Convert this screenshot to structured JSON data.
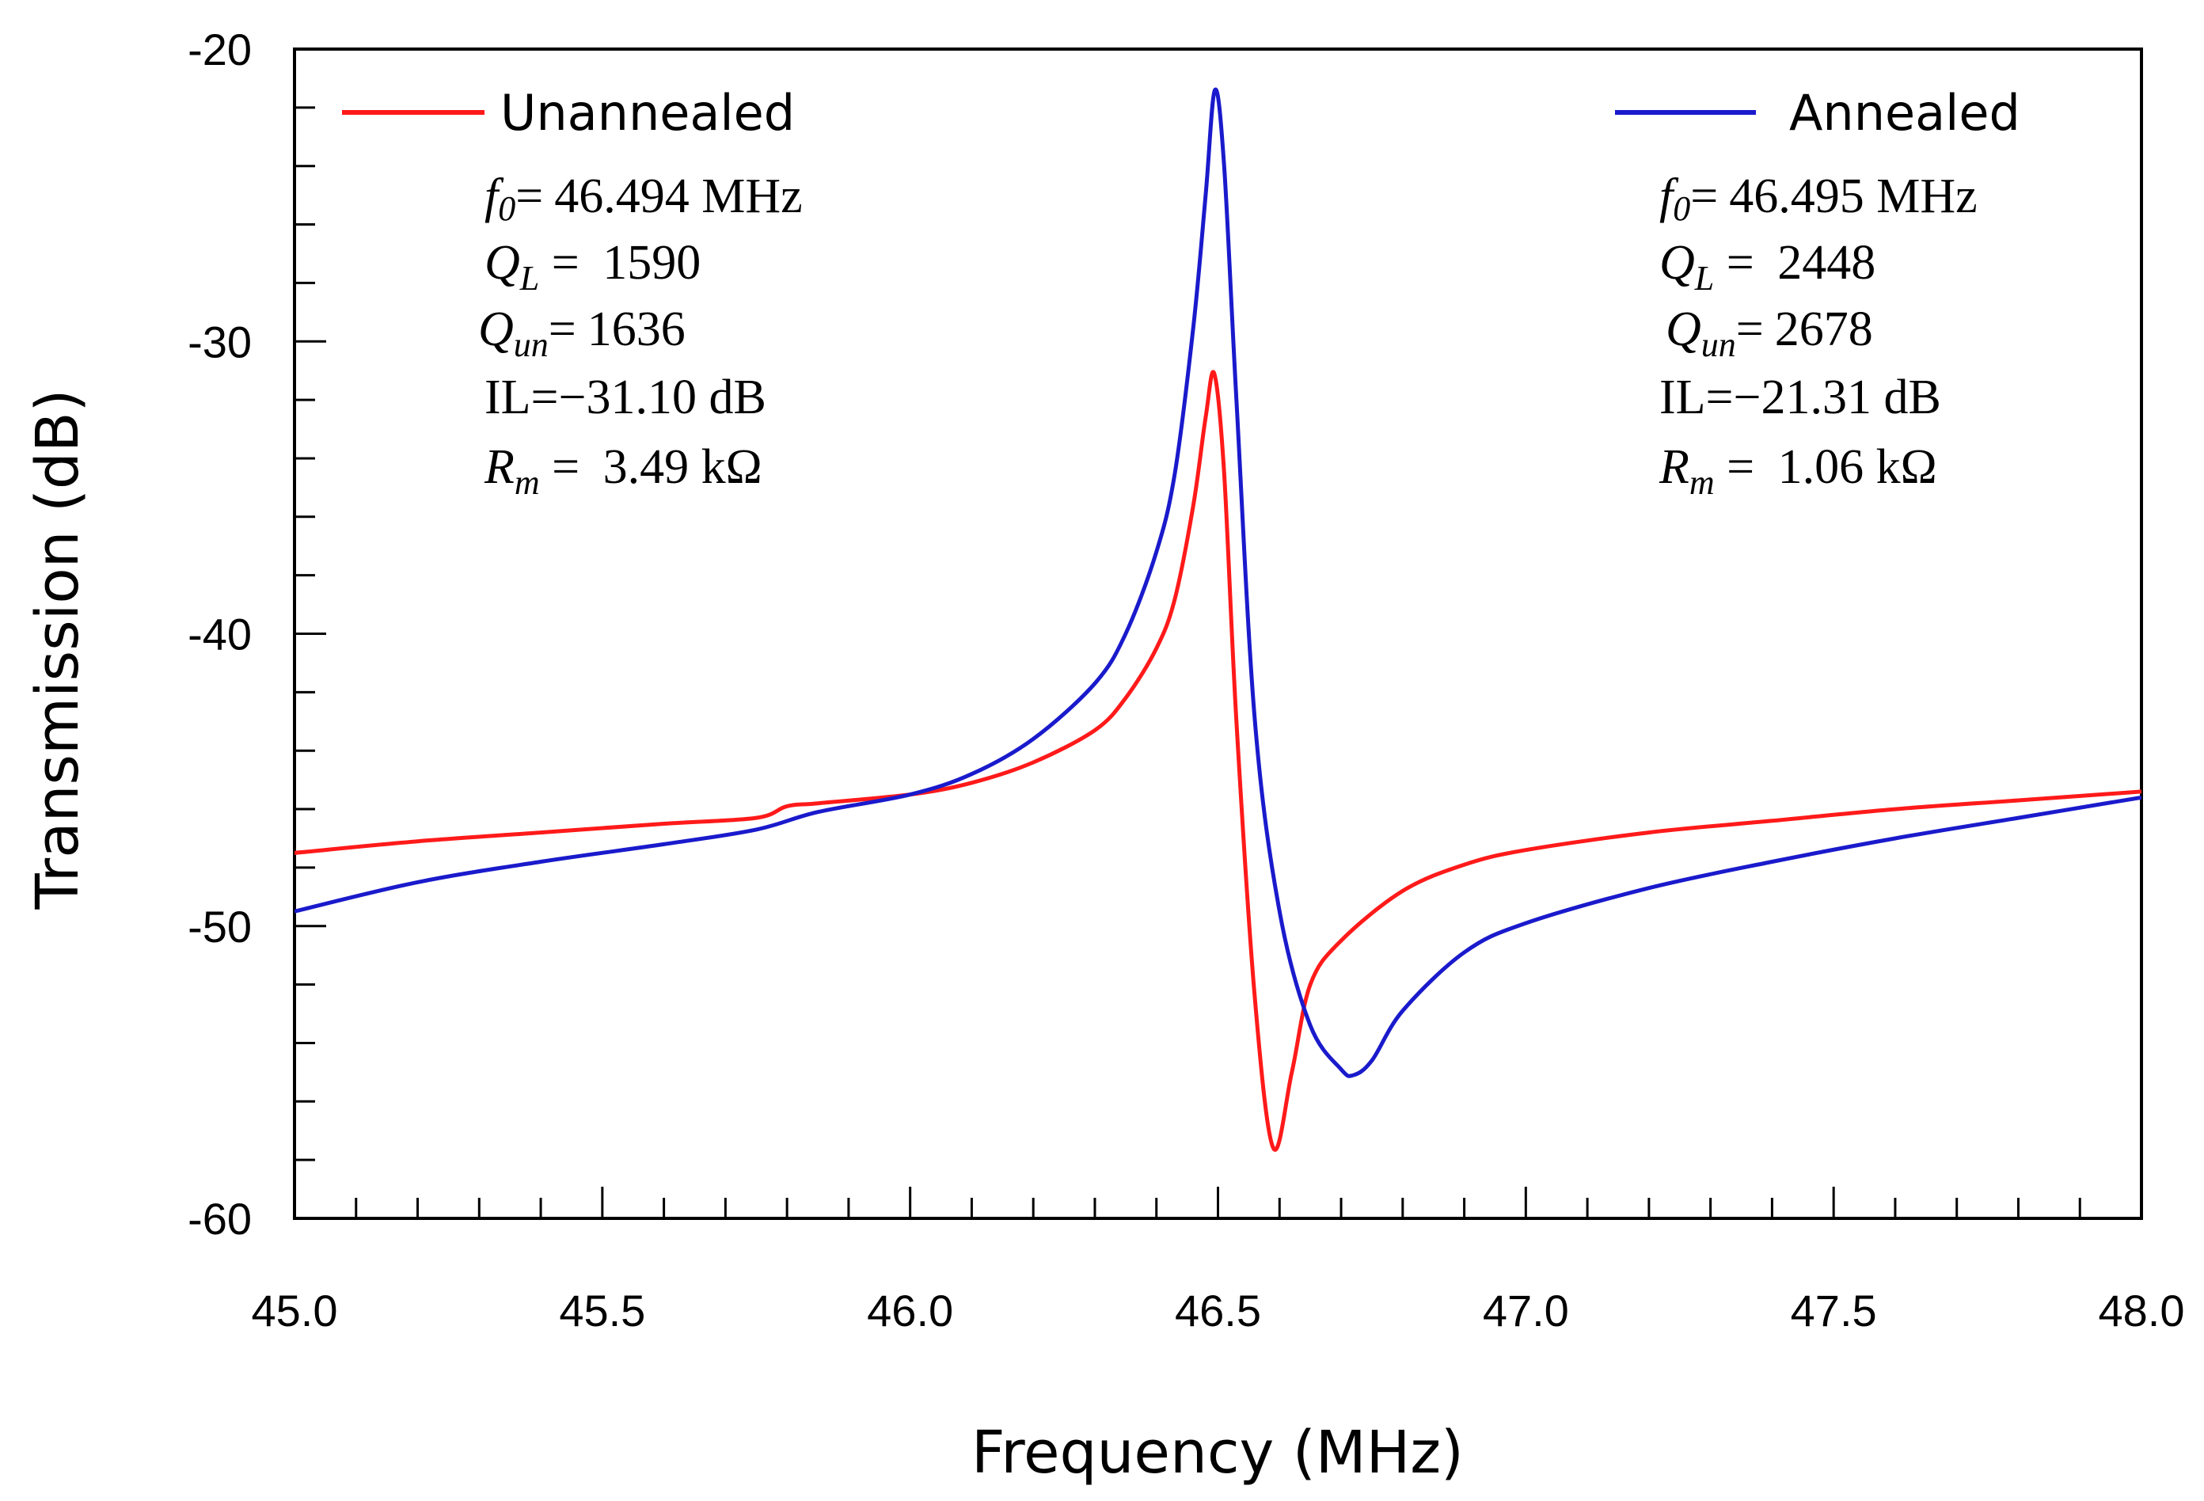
{
  "chart_data": {
    "type": "line",
    "title": "",
    "xlabel": "Frequency (MHz)",
    "ylabel": "Transmission (dB)",
    "xlim": [
      45.0,
      48.0
    ],
    "ylim": [
      -60,
      -20
    ],
    "x_ticks": [
      "45.0",
      "45.5",
      "46.0",
      "46.5",
      "47.0",
      "47.5",
      "48.0"
    ],
    "y_ticks": [
      "-20",
      "-30",
      "-40",
      "-50",
      "-60"
    ],
    "grid": false,
    "series": [
      {
        "name": "Unannealed",
        "color": "#ff1a1a",
        "x": [
          45.0,
          45.2,
          45.4,
          45.6,
          45.75,
          45.8,
          45.85,
          46.0,
          46.1,
          46.2,
          46.3,
          46.35,
          46.4,
          46.43,
          46.46,
          46.48,
          46.494,
          46.51,
          46.53,
          46.56,
          46.59,
          46.62,
          46.65,
          46.7,
          46.8,
          46.9,
          47.0,
          47.2,
          47.4,
          47.6,
          47.8,
          48.0
        ],
        "y": [
          -47.5,
          -47.1,
          -46.8,
          -46.5,
          -46.3,
          -45.9,
          -45.8,
          -45.5,
          -45.1,
          -44.4,
          -43.3,
          -42.2,
          -40.5,
          -38.8,
          -35.6,
          -32.6,
          -31.1,
          -34.5,
          -43.0,
          -52.5,
          -57.6,
          -55.0,
          -52.0,
          -50.5,
          -48.8,
          -47.9,
          -47.4,
          -46.8,
          -46.4,
          -46.0,
          -45.7,
          -45.4
        ]
      },
      {
        "name": "Annealed",
        "color": "#1a1acc",
        "x": [
          45.0,
          45.2,
          45.4,
          45.6,
          45.75,
          45.85,
          46.0,
          46.1,
          46.2,
          46.3,
          46.35,
          46.4,
          46.43,
          46.46,
          46.48,
          46.495,
          46.51,
          46.53,
          46.56,
          46.6,
          46.65,
          46.7,
          46.72,
          46.75,
          46.8,
          46.9,
          47.0,
          47.2,
          47.4,
          47.6,
          47.8,
          48.0
        ],
        "y": [
          -49.5,
          -48.5,
          -47.8,
          -47.2,
          -46.7,
          -46.1,
          -45.5,
          -44.8,
          -43.6,
          -41.7,
          -40.0,
          -37.2,
          -34.5,
          -29.5,
          -25.0,
          -21.4,
          -24.0,
          -32.0,
          -43.0,
          -49.5,
          -53.4,
          -54.9,
          -55.1,
          -54.6,
          -52.9,
          -50.9,
          -49.9,
          -48.7,
          -47.8,
          -47.0,
          -46.3,
          -45.6
        ]
      }
    ],
    "legend": [
      {
        "label": "Unannealed",
        "color": "#ff1a1a",
        "annotations": {
          "f0": "46.494 MHz",
          "QL": "1590",
          "Qun": "1636",
          "IL": "−31.10 dB",
          "Rm": "3.49 kΩ"
        }
      },
      {
        "label": "Annealed",
        "color": "#1a1acc",
        "annotations": {
          "f0": "46.495 MHz",
          "QL": "2448",
          "Qun": "2678",
          "IL": "−21.31 dB",
          "Rm": "1.06 kΩ"
        }
      }
    ]
  },
  "symbols": {
    "f": "f",
    "f_sub": "0",
    "Q": "Q",
    "L_sub": "L",
    "un_sub": "un",
    "IL": "IL",
    "R": "R",
    "m_sub": "m",
    "eq": "=",
    "eq_spaced": " = "
  }
}
